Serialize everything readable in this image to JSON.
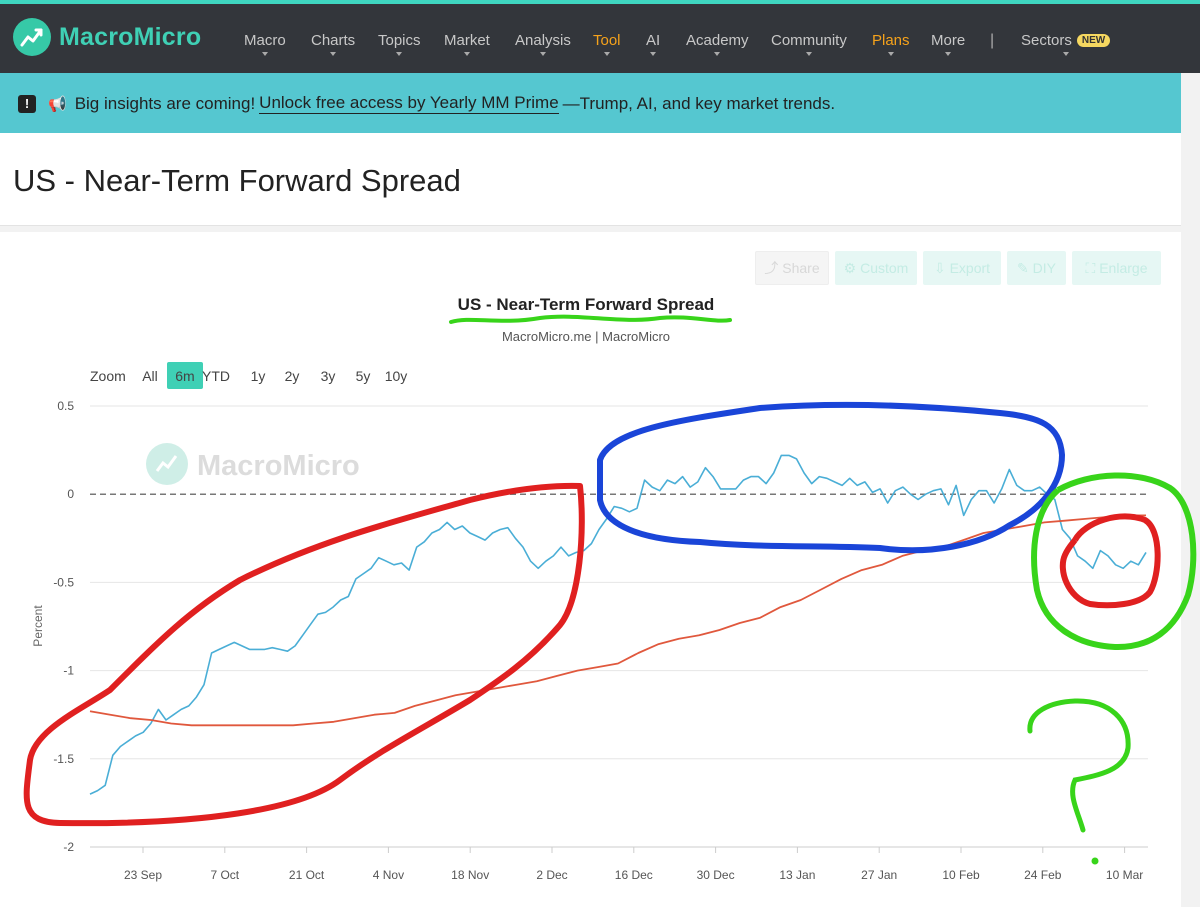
{
  "brand": {
    "name": "MacroMicro"
  },
  "nav": {
    "items": [
      {
        "label": "Macro",
        "highlight": false
      },
      {
        "label": "Charts",
        "highlight": false
      },
      {
        "label": "Topics",
        "highlight": false
      },
      {
        "label": "Market",
        "highlight": false
      },
      {
        "label": "Analysis",
        "highlight": false
      },
      {
        "label": "Tool",
        "highlight": true
      },
      {
        "label": "AI",
        "highlight": false
      },
      {
        "label": "Academy",
        "highlight": false
      },
      {
        "label": "Community",
        "highlight": false
      },
      {
        "label": "Plans",
        "highlight": true
      },
      {
        "label": "More",
        "highlight": false
      }
    ],
    "separator": "|",
    "sectors": {
      "label": "Sectors",
      "badge": "NEW"
    }
  },
  "banner": {
    "icon": "!",
    "lead": "Big insights are coming!",
    "link": "Unlock free access by Yearly MM Prime",
    "tail": "—Trump, AI, and key market trends."
  },
  "page": {
    "title": "US - Near-Term Forward Spread"
  },
  "toolbar": {
    "share": "Share",
    "custom": "Custom",
    "export": "Export",
    "diy": "DIY",
    "enlarge": "Enlarge"
  },
  "zoom": {
    "label": "Zoom",
    "options": [
      "All",
      "6m",
      "YTD",
      "1y",
      "2y",
      "3y",
      "5y",
      "10y"
    ],
    "selected": "6m"
  },
  "colors": {
    "accent": "#3fd0b5",
    "series_main": "#4aaed6",
    "series_avg": "#e0583d",
    "annot_red": "#e02020",
    "annot_blue": "#1a45d8",
    "annot_green": "#38d41a"
  },
  "chart_data": {
    "type": "line",
    "title": "US - Near-Term Forward Spread",
    "subtitle": "MacroMicro.me | MacroMicro",
    "watermark": "MacroMicro",
    "ylabel": "Percent",
    "ylim": [
      -2,
      0.5
    ],
    "yticks": [
      0.5,
      0,
      -0.5,
      -1,
      -1.5,
      -2
    ],
    "ytick_labels": [
      "0.5",
      "0",
      "-0.5",
      "-1",
      "-1.5",
      "-2"
    ],
    "xticks": [
      "23 Sep",
      "7 Oct",
      "21 Oct",
      "4 Nov",
      "18 Nov",
      "2 Dec",
      "16 Dec",
      "30 Dec",
      "13 Jan",
      "27 Jan",
      "10 Feb",
      "24 Feb",
      "10 Mar"
    ],
    "reference_line": 0,
    "series": [
      {
        "values": [
          -1.7,
          -1.68,
          -1.65,
          -1.48,
          -1.43,
          -1.4,
          -1.37,
          -1.35,
          -1.3,
          -1.22,
          -1.28,
          -1.25,
          -1.22,
          -1.2,
          -1.15,
          -1.08,
          -0.9,
          -0.88,
          -0.86,
          -0.84,
          -0.86,
          -0.88,
          -0.88,
          -0.88,
          -0.87,
          -0.88,
          -0.89,
          -0.86,
          -0.8,
          -0.74,
          -0.68,
          -0.67,
          -0.64,
          -0.6,
          -0.58,
          -0.48,
          -0.45,
          -0.42,
          -0.36,
          -0.38,
          -0.4,
          -0.39,
          -0.43,
          -0.3,
          -0.27,
          -0.22,
          -0.2,
          -0.16,
          -0.2,
          -0.18,
          -0.22,
          -0.24,
          -0.26,
          -0.22,
          -0.2,
          -0.19,
          -0.25,
          -0.3,
          -0.38,
          -0.42,
          -0.38,
          -0.35,
          -0.3,
          -0.35,
          -0.33,
          -0.32,
          -0.28,
          -0.2,
          -0.14,
          -0.07,
          -0.08,
          -0.1,
          -0.08,
          0.08,
          0.04,
          0.02,
          0.08,
          0.06,
          0.1,
          0.04,
          0.07,
          0.15,
          0.1,
          0.03,
          0.03,
          0.03,
          0.08,
          0.1,
          0.1,
          0.06,
          0.12,
          0.22,
          0.22,
          0.2,
          0.12,
          0.06,
          0.1,
          0.09,
          0.07,
          0.05,
          0.09,
          0.05,
          0.07,
          0.01,
          0.03,
          -0.05,
          0.02,
          0.04,
          0.0,
          -0.03,
          0.0,
          0.02,
          0.03,
          -0.06,
          0.05,
          -0.12,
          -0.03,
          0.02,
          0.02,
          -0.05,
          0.03,
          0.14,
          0.05,
          0.02,
          0.02,
          0.04,
          0.0,
          -0.03,
          -0.2,
          -0.25,
          -0.35,
          -0.38,
          -0.42,
          -0.32,
          -0.35,
          -0.4,
          -0.42,
          -0.38,
          -0.4,
          -0.33
        ]
      },
      {
        "values": [
          -1.23,
          -1.25,
          -1.27,
          -1.28,
          -1.3,
          -1.31,
          -1.31,
          -1.31,
          -1.31,
          -1.31,
          -1.31,
          -1.3,
          -1.29,
          -1.27,
          -1.25,
          -1.24,
          -1.2,
          -1.17,
          -1.14,
          -1.12,
          -1.1,
          -1.08,
          -1.06,
          -1.03,
          -1.0,
          -0.98,
          -0.96,
          -0.9,
          -0.85,
          -0.82,
          -0.8,
          -0.77,
          -0.73,
          -0.7,
          -0.64,
          -0.6,
          -0.54,
          -0.48,
          -0.43,
          -0.4,
          -0.35,
          -0.32,
          -0.3,
          -0.26,
          -0.22,
          -0.2,
          -0.18,
          -0.16,
          -0.15,
          -0.14,
          -0.13,
          -0.12,
          -0.12
        ]
      }
    ]
  },
  "annotations": {
    "question_mark": "?"
  }
}
